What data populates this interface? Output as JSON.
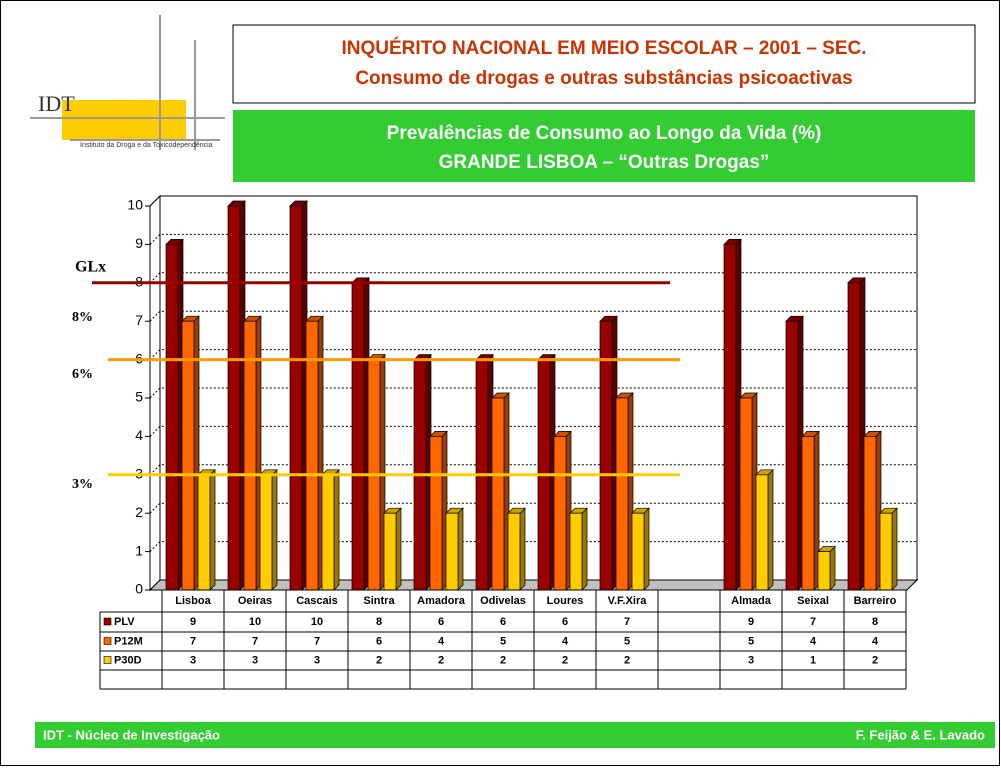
{
  "header": {
    "logo": "IDT",
    "logo_caption": "Instituto da Droga e da Toxicodependência",
    "title_lines": [
      "INQUÉRITO NACIONAL EM MEIO ESCOLAR – 2001 – SEC.",
      "Consumo de drogas e outras substâncias psicoactivas"
    ],
    "subtitle_lines": [
      "Prevalências de Consumo ao Longo da Vida (%)",
      "GRANDE LISBOA – “Outras Drogas”"
    ]
  },
  "footer": {
    "left": "IDT - Núcleo de Investigação",
    "right": "F. Feijão & E. Lavado"
  },
  "chart_data": {
    "type": "bar",
    "categories": [
      "Lisboa",
      "Oeiras",
      "Cascais",
      "Sintra",
      "Amadora",
      "Odivelas",
      "Loures",
      "V.F.Xira",
      null,
      "Almada",
      "Seixal",
      "Barreiro"
    ],
    "series": [
      {
        "name": "PLV",
        "color": "#990000",
        "values": [
          9,
          10,
          10,
          8,
          6,
          6,
          6,
          7,
          null,
          9,
          7,
          8
        ]
      },
      {
        "name": "P12M",
        "color": "#ff6600",
        "values": [
          7,
          7,
          7,
          6,
          4,
          5,
          4,
          5,
          null,
          5,
          4,
          4
        ]
      },
      {
        "name": "P30D",
        "color": "#ffcc00",
        "values": [
          3,
          3,
          3,
          2,
          2,
          2,
          2,
          2,
          null,
          3,
          1,
          2
        ]
      }
    ],
    "ylim": [
      0,
      10
    ],
    "yticks": [
      0,
      1,
      2,
      3,
      4,
      5,
      6,
      7,
      8,
      9,
      10
    ],
    "grid": true,
    "annotation": "GLx",
    "reference_lines": [
      {
        "value": 8,
        "label": "8%",
        "color": "#990000"
      },
      {
        "value": 6,
        "label": "6%",
        "color": "#ff9900"
      },
      {
        "value": 3,
        "label": "3%",
        "color": "#ffcc00"
      }
    ]
  }
}
